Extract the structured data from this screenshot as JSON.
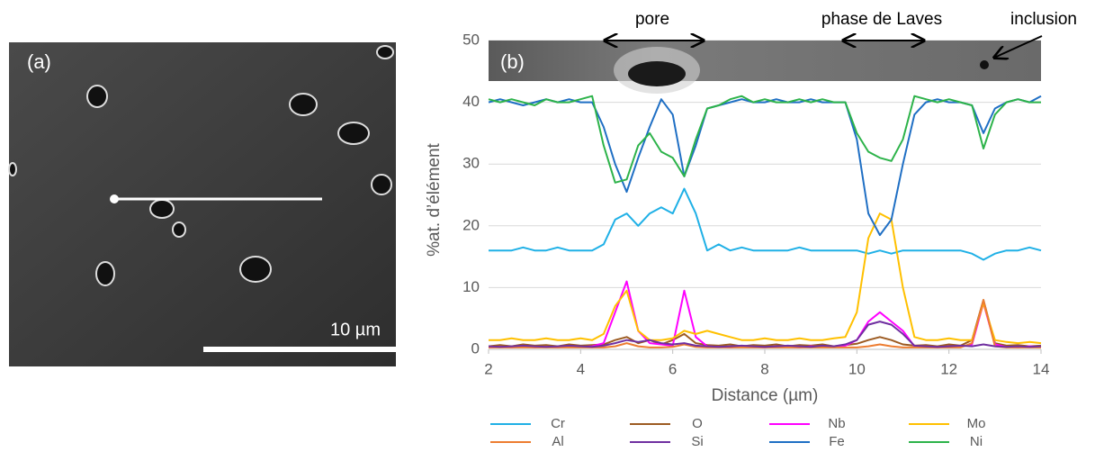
{
  "figure": {
    "image_label": "(a)",
    "scale_bar_label": "10 µm"
  },
  "chart_data": {
    "type": "line",
    "panel_label": "(b)",
    "x_label": "Distance (µm)",
    "y_label": "%at. d’élément",
    "annotations": [
      {
        "text": "pore"
      },
      {
        "text": "phase de Laves"
      },
      {
        "text": "inclusion"
      }
    ],
    "xlim": [
      2,
      14
    ],
    "xticks": [
      2,
      4,
      6,
      8,
      10,
      12,
      14
    ],
    "ylim": [
      0,
      50
    ],
    "yticks": [
      0,
      10,
      20,
      30,
      40,
      50
    ],
    "grid": true,
    "legend": "bottom",
    "x": [
      2,
      2.25,
      2.5,
      2.75,
      3,
      3.25,
      3.5,
      3.75,
      4,
      4.25,
      4.5,
      4.75,
      5,
      5.25,
      5.5,
      5.75,
      6,
      6.25,
      6.5,
      6.75,
      7,
      7.25,
      7.5,
      7.75,
      8,
      8.25,
      8.5,
      8.75,
      9,
      9.25,
      9.5,
      9.75,
      10,
      10.25,
      10.5,
      10.75,
      11,
      11.25,
      11.5,
      11.75,
      12,
      12.25,
      12.5,
      12.75,
      13,
      13.25,
      13.5,
      13.75,
      14
    ],
    "series": [
      {
        "name": "Cr",
        "color": "#1fb0e6",
        "values": [
          16,
          16,
          16,
          16.5,
          16,
          16,
          16.5,
          16,
          16,
          16,
          17,
          21,
          22,
          20,
          22,
          23,
          22,
          26,
          22,
          16,
          17,
          16,
          16.5,
          16,
          16,
          16,
          16,
          16.5,
          16,
          16,
          16,
          16,
          16,
          15.5,
          16,
          15.5,
          16,
          16,
          16,
          16,
          16,
          16,
          15.5,
          14.5,
          15.5,
          16,
          16,
          16.5,
          16
        ]
      },
      {
        "name": "O",
        "color": "#9c5b22",
        "values": [
          0.5,
          0.7,
          0.5,
          0.8,
          0.6,
          0.7,
          0.5,
          0.8,
          0.6,
          0.7,
          0.8,
          1.5,
          2,
          1,
          1.5,
          0.8,
          1.5,
          2.5,
          1,
          0.7,
          0.6,
          0.8,
          0.5,
          0.7,
          0.6,
          0.8,
          0.5,
          0.7,
          0.6,
          0.8,
          0.5,
          0.7,
          0.9,
          1.5,
          2,
          1.5,
          0.8,
          0.6,
          0.7,
          0.5,
          0.8,
          0.6,
          1.5,
          8,
          1,
          0.6,
          0.7,
          0.5,
          0.6
        ]
      },
      {
        "name": "Nb",
        "color": "#ff00ff",
        "values": [
          0.3,
          0.4,
          0.3,
          0.5,
          0.3,
          0.4,
          0.3,
          0.5,
          0.4,
          0.5,
          1,
          6,
          11,
          3,
          1,
          0.8,
          0.6,
          9.5,
          2,
          0.5,
          0.4,
          0.3,
          0.5,
          0.4,
          0.3,
          0.5,
          0.4,
          0.3,
          0.5,
          0.4,
          0.5,
          0.6,
          1.5,
          4.5,
          6,
          4.5,
          3,
          0.5,
          0.4,
          0.3,
          0.5,
          0.4,
          0.8,
          7.5,
          0.8,
          0.4,
          0.3,
          0.5,
          0.4
        ]
      },
      {
        "name": "Mo",
        "color": "#ffc000",
        "values": [
          1.5,
          1.5,
          1.8,
          1.5,
          1.5,
          1.8,
          1.5,
          1.5,
          1.8,
          1.5,
          2.5,
          7,
          9.5,
          3,
          1.5,
          1.5,
          1.8,
          3,
          2.5,
          3,
          2.5,
          2,
          1.5,
          1.5,
          1.8,
          1.5,
          1.5,
          1.8,
          1.5,
          1.5,
          1.8,
          2,
          6,
          18,
          22,
          21,
          10,
          2,
          1.5,
          1.5,
          1.8,
          1.5,
          1.5,
          7.5,
          1.5,
          1.2,
          1,
          1.2,
          1
        ]
      },
      {
        "name": "Al",
        "color": "#ed7d31",
        "values": [
          0.3,
          0.3,
          0.3,
          0.3,
          0.3,
          0.3,
          0.3,
          0.3,
          0.3,
          0.3,
          0.3,
          0.5,
          1,
          0.5,
          0.3,
          0.3,
          0.4,
          0.8,
          0.4,
          0.3,
          0.3,
          0.3,
          0.3,
          0.3,
          0.3,
          0.3,
          0.3,
          0.3,
          0.3,
          0.3,
          0.3,
          0.3,
          0.3,
          0.5,
          0.8,
          0.5,
          0.3,
          0.3,
          0.3,
          0.3,
          0.3,
          0.3,
          1,
          8,
          0.5,
          0.3,
          0.3,
          0.3,
          0.3
        ]
      },
      {
        "name": "Si",
        "color": "#7030a0",
        "values": [
          0.5,
          0.4,
          0.5,
          0.6,
          0.5,
          0.4,
          0.5,
          0.6,
          0.5,
          0.4,
          0.6,
          1,
          1.5,
          1.2,
          1.5,
          1,
          0.8,
          1,
          0.6,
          0.5,
          0.4,
          0.5,
          0.6,
          0.5,
          0.4,
          0.5,
          0.6,
          0.5,
          0.4,
          0.6,
          0.5,
          0.8,
          1.5,
          4,
          4.5,
          4,
          2.5,
          0.6,
          0.5,
          0.4,
          0.5,
          0.6,
          0.5,
          0.8,
          0.5,
          0.4,
          0.5,
          0.4,
          0.5
        ]
      },
      {
        "name": "Fe",
        "color": "#1f6fc4",
        "values": [
          40,
          40.5,
          40,
          39.5,
          40,
          40.5,
          40,
          40.5,
          40,
          40,
          36,
          30,
          25.5,
          31,
          36,
          40.5,
          38,
          28,
          33,
          39,
          39.5,
          40,
          40.5,
          40,
          40,
          40.5,
          40,
          40,
          40.5,
          40,
          40,
          40,
          34,
          22,
          18.5,
          21,
          30,
          38,
          40,
          40.5,
          40,
          40,
          39.5,
          35,
          39,
          40,
          40.5,
          40,
          41
        ]
      },
      {
        "name": "Ni",
        "color": "#2db34a",
        "values": [
          40.5,
          40,
          40.5,
          40,
          39.5,
          40.5,
          40,
          40,
          40.5,
          41,
          33,
          27,
          27.5,
          33,
          35,
          32,
          31,
          28,
          34,
          39,
          39.5,
          40.5,
          41,
          40,
          40.5,
          40,
          40,
          40.5,
          40,
          40.5,
          40,
          40,
          35,
          32,
          31,
          30.5,
          34,
          41,
          40.5,
          40,
          40.5,
          40,
          39.5,
          32.5,
          38,
          40,
          40.5,
          40,
          40
        ]
      }
    ]
  }
}
